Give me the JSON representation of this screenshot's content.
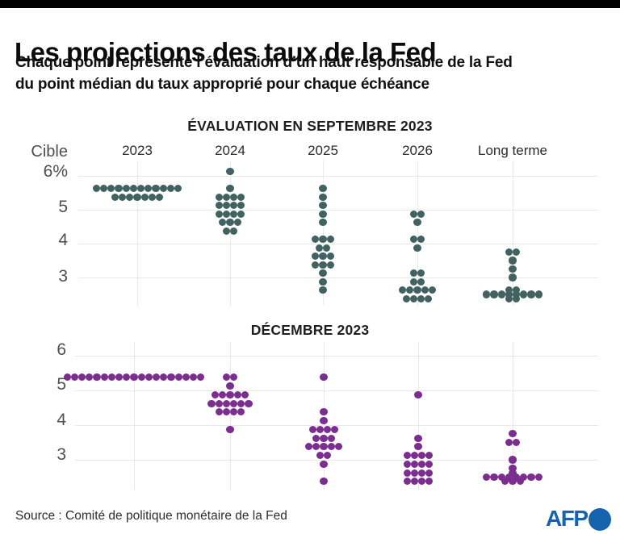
{
  "page": {
    "title": "Les projections des taux de la Fed",
    "subtitle_line1": "Chaque point représente l’évaluation d’un haut responsable de la Fed",
    "subtitle_line2": "du point médian du taux approprié pour chaque échéance",
    "source": "Source : Comité de politique monétaire de la Fed",
    "logo": "AFP"
  },
  "colors": {
    "september_dots": "#426261",
    "december_dots": "#7c2e90",
    "gridline": "#e8e8e5",
    "afp_blue": "#1562af"
  },
  "chart_data": [
    {
      "type": "scatter",
      "title": "ÉVALUATION EN SEPTEMBRE 2023",
      "y_axis_title": "Cible",
      "yticks": [
        "6%",
        "5",
        "4",
        "3"
      ],
      "ytick_values": [
        6,
        5,
        4,
        3
      ],
      "ylim": [
        2.2,
        6.3
      ],
      "grid": true,
      "categories": [
        "2023",
        "2024",
        "2025",
        "2026",
        "Long terme"
      ],
      "dot_color": "#426261",
      "series": [
        {
          "name": "2023",
          "dots": [
            {
              "v": 5.625,
              "n": 12
            },
            {
              "v": 5.375,
              "n": 7
            }
          ]
        },
        {
          "name": "2024",
          "dots": [
            {
              "v": 6.125,
              "n": 1
            },
            {
              "v": 5.625,
              "n": 1
            },
            {
              "v": 5.375,
              "n": 4
            },
            {
              "v": 5.125,
              "n": 4
            },
            {
              "v": 4.875,
              "n": 4
            },
            {
              "v": 4.625,
              "n": 3
            },
            {
              "v": 4.375,
              "n": 2
            }
          ]
        },
        {
          "name": "2025",
          "dots": [
            {
              "v": 5.625,
              "n": 1
            },
            {
              "v": 5.375,
              "n": 1
            },
            {
              "v": 5.125,
              "n": 1
            },
            {
              "v": 4.875,
              "n": 1
            },
            {
              "v": 4.625,
              "n": 1
            },
            {
              "v": 4.125,
              "n": 3
            },
            {
              "v": 3.875,
              "n": 2
            },
            {
              "v": 3.625,
              "n": 3
            },
            {
              "v": 3.375,
              "n": 3
            },
            {
              "v": 3.125,
              "n": 1
            },
            {
              "v": 2.875,
              "n": 1
            },
            {
              "v": 2.625,
              "n": 1
            }
          ]
        },
        {
          "name": "2026",
          "dots": [
            {
              "v": 4.875,
              "n": 2
            },
            {
              "v": 4.625,
              "n": 1
            },
            {
              "v": 4.125,
              "n": 2
            },
            {
              "v": 3.875,
              "n": 1
            },
            {
              "v": 3.125,
              "n": 2
            },
            {
              "v": 2.875,
              "n": 2
            },
            {
              "v": 2.625,
              "n": 5
            },
            {
              "v": 2.375,
              "n": 4
            }
          ]
        },
        {
          "name": "Long terme",
          "dots": [
            {
              "v": 3.75,
              "n": 2
            },
            {
              "v": 3.5,
              "n": 1
            },
            {
              "v": 3.25,
              "n": 1
            },
            {
              "v": 3.0,
              "n": 1
            },
            {
              "v": 2.625,
              "n": 2
            },
            {
              "v": 2.5,
              "n": 8
            },
            {
              "v": 2.375,
              "n": 2
            }
          ]
        }
      ]
    },
    {
      "type": "scatter",
      "title": "DÉCEMBRE 2023",
      "yticks": [
        "6",
        "5",
        "4",
        "3"
      ],
      "ytick_values": [
        6,
        5,
        4,
        3
      ],
      "ylim": [
        2.2,
        6.3
      ],
      "grid": true,
      "categories": [
        "2023",
        "2024",
        "2025",
        "2026",
        "Long terme"
      ],
      "dot_color": "#7c2e90",
      "series": [
        {
          "name": "2023",
          "dots": [
            {
              "v": 5.375,
              "n": 19
            }
          ]
        },
        {
          "name": "2024",
          "dots": [
            {
              "v": 5.375,
              "n": 2
            },
            {
              "v": 5.125,
              "n": 1
            },
            {
              "v": 4.875,
              "n": 5
            },
            {
              "v": 4.625,
              "n": 6
            },
            {
              "v": 4.375,
              "n": 4
            },
            {
              "v": 3.875,
              "n": 1
            }
          ]
        },
        {
          "name": "2025",
          "dots": [
            {
              "v": 5.375,
              "n": 1
            },
            {
              "v": 4.375,
              "n": 1
            },
            {
              "v": 4.125,
              "n": 1
            },
            {
              "v": 3.875,
              "n": 4
            },
            {
              "v": 3.625,
              "n": 3
            },
            {
              "v": 3.375,
              "n": 5
            },
            {
              "v": 3.125,
              "n": 2
            },
            {
              "v": 2.875,
              "n": 1
            },
            {
              "v": 2.375,
              "n": 1
            }
          ]
        },
        {
          "name": "2026",
          "dots": [
            {
              "v": 4.875,
              "n": 1
            },
            {
              "v": 3.625,
              "n": 1
            },
            {
              "v": 3.375,
              "n": 1
            },
            {
              "v": 3.125,
              "n": 4
            },
            {
              "v": 2.875,
              "n": 4
            },
            {
              "v": 2.625,
              "n": 4
            },
            {
              "v": 2.375,
              "n": 4
            }
          ]
        },
        {
          "name": "Long terme",
          "dots": [
            {
              "v": 3.75,
              "n": 1
            },
            {
              "v": 3.5,
              "n": 2
            },
            {
              "v": 3.0,
              "n": 1
            },
            {
              "v": 2.75,
              "n": 1
            },
            {
              "v": 2.625,
              "n": 1
            },
            {
              "v": 2.5,
              "n": 8
            },
            {
              "v": 2.375,
              "n": 3
            }
          ]
        }
      ]
    }
  ]
}
